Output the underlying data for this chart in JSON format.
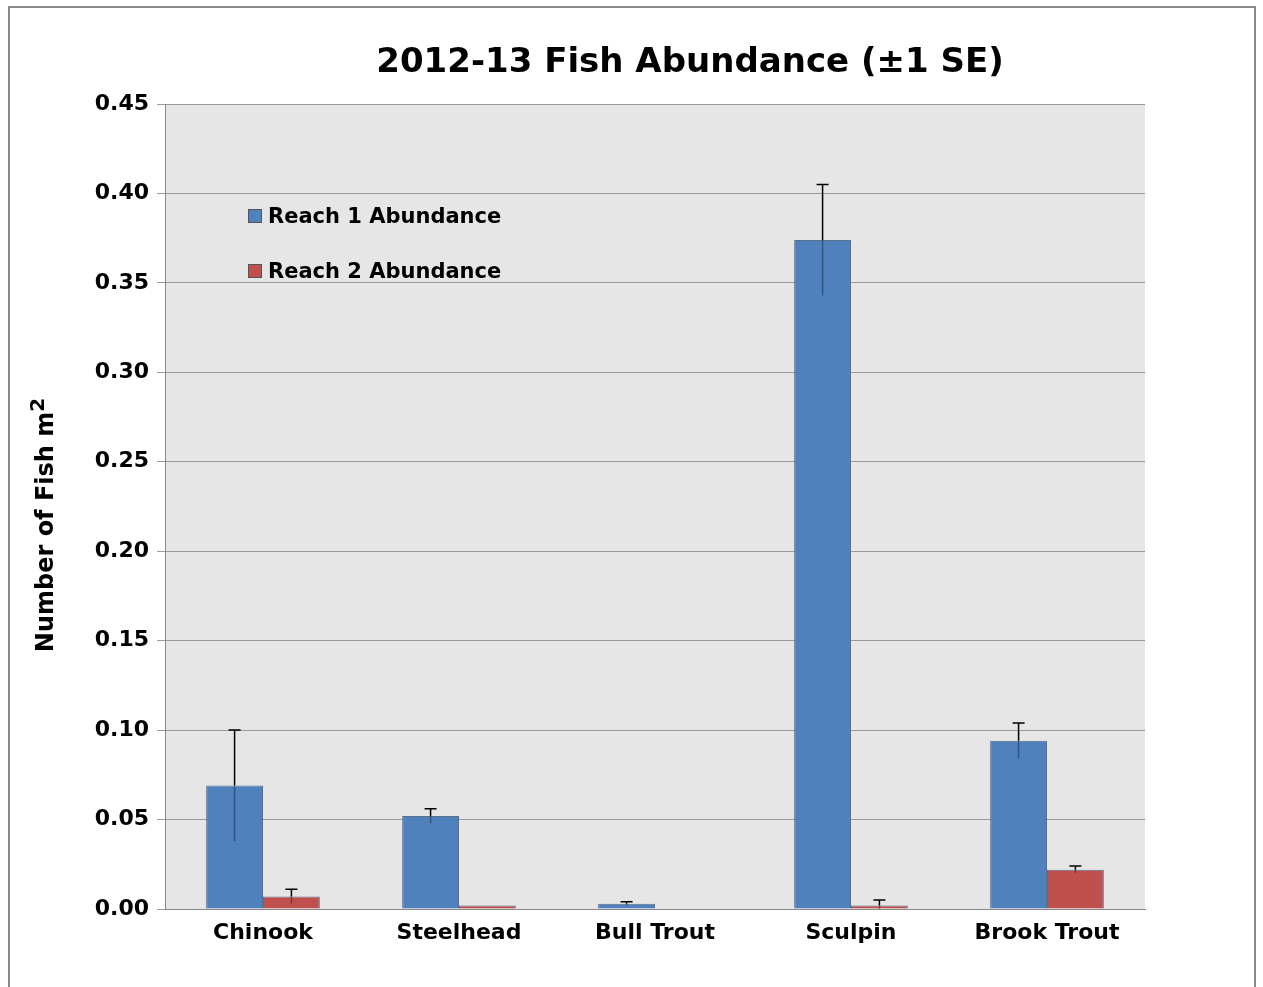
{
  "chart_data": {
    "type": "bar",
    "title": "2012-13 Fish Abundance (±1 SE)",
    "ylabel": "Number of Fish m$^{2}$",
    "categories": [
      "Chinook",
      "Steelhead",
      "Bull Trout",
      "Sculpin",
      "Brook Trout"
    ],
    "series": [
      {
        "name": "Reach 1 Abundance",
        "color": "#4f81bd",
        "values": [
          0.069,
          0.052,
          0.003,
          0.374,
          0.094
        ],
        "errors": [
          0.031,
          0.004,
          0.001,
          0.031,
          0.01
        ]
      },
      {
        "name": "Reach 2 Abundance",
        "color": "#c0504d",
        "values": [
          0.007,
          0.002,
          0,
          0.002,
          0.022
        ],
        "errors": [
          0.004,
          null,
          null,
          0.003,
          0.002
        ]
      }
    ],
    "ylim": [
      0,
      0.45
    ],
    "yticks": [
      {
        "value": 0,
        "label": "0.00"
      },
      {
        "value": 0.05,
        "label": "0.05"
      },
      {
        "value": 0.1,
        "label": "0.10"
      },
      {
        "value": 0.15,
        "label": "0.15"
      },
      {
        "value": 0.2,
        "label": "0.20"
      },
      {
        "value": 0.25,
        "label": "0.25"
      },
      {
        "value": 0.3,
        "label": "0.30"
      },
      {
        "value": 0.35,
        "label": "0.35"
      },
      {
        "value": 0.4,
        "label": "0.40"
      },
      {
        "value": 0.45,
        "label": "0.45"
      }
    ],
    "grid": "y",
    "legend": "top left"
  }
}
